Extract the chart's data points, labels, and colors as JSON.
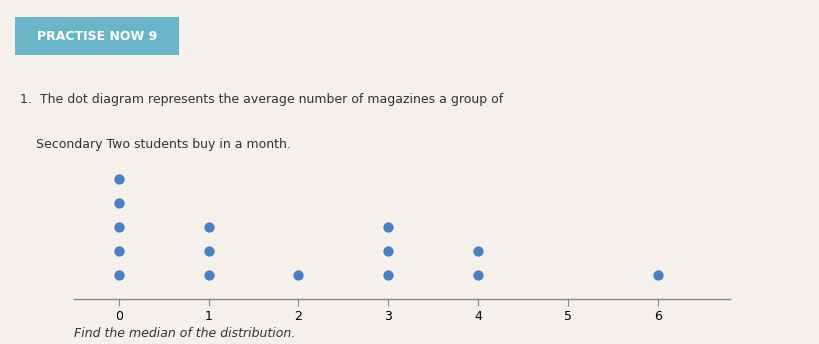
{
  "title_box_text": "PRACTISE NOW 9",
  "title_box_bg": "#6ab4c8",
  "title_box_text_color": "#ffffff",
  "question_line1": "1.  The dot diagram represents the average number of magazines a group of",
  "question_line2": "    Secondary Two students buy in a month.",
  "footer_text": "Find the median of the distribution.",
  "dot_counts": {
    "0": 5,
    "1": 3,
    "2": 1,
    "3": 3,
    "4": 2,
    "5": 0,
    "6": 1
  },
  "x_min": -0.5,
  "x_max": 6.8,
  "dot_color": "#4a7fc0",
  "dot_size": 55,
  "axis_color": "#888888",
  "background_color": "#f5f0ec",
  "text_color": "#333333",
  "question_fontsize": 9,
  "footer_fontsize": 9,
  "title_fontsize": 9,
  "tick_labels": [
    "0",
    "1",
    "2",
    "3",
    "4",
    "5",
    "6"
  ]
}
